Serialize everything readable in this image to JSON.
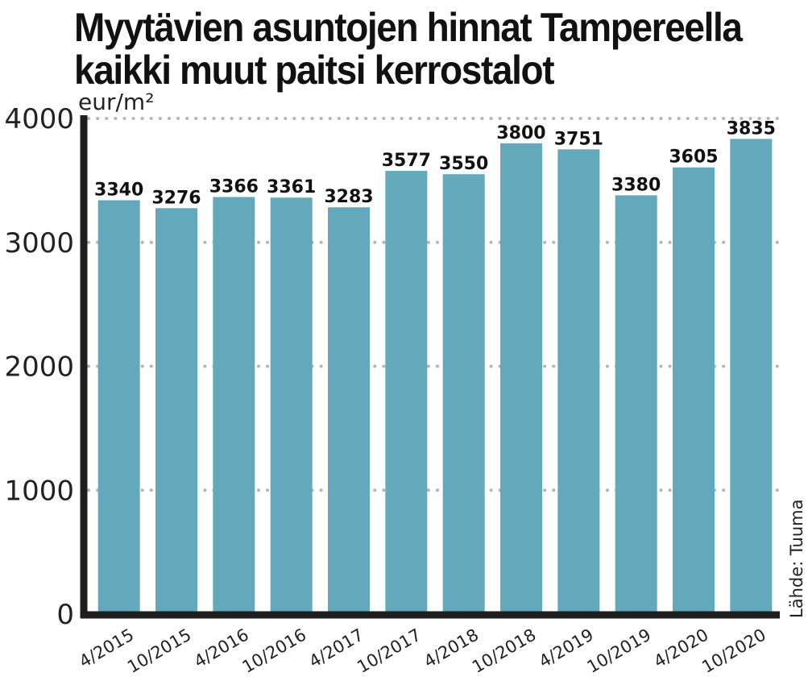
{
  "title_line1": "Myytävien asuntojen hinnat Tampereella",
  "title_line2": "kaikki muut paitsi kerrostalot",
  "source": "Lähde: Tuuma",
  "colors": {
    "bar": "#63a9bb",
    "axis": "#1d1d1d",
    "grid": "#b5b5b5"
  },
  "chart_data": {
    "type": "bar",
    "title": "Myytävien asuntojen hinnat Tampereella kaikki muut paitsi kerrostalot",
    "ylabel": "eur/m²",
    "xlabel": "",
    "categories": [
      "4/2015",
      "10/2015",
      "4/2016",
      "10/2016",
      "4/2017",
      "10/2017",
      "4/2018",
      "10/2018",
      "4/2019",
      "10/2019",
      "4/2020",
      "10/2020"
    ],
    "values": [
      3340,
      3276,
      3366,
      3361,
      3283,
      3577,
      3550,
      3800,
      3751,
      3380,
      3605,
      3835
    ],
    "value_labels": [
      "3340",
      "3276",
      "3366",
      "3361",
      "3283",
      "3577",
      "3550",
      "3800",
      "3751",
      "3380",
      "3605",
      "3835"
    ],
    "ylim": [
      0,
      4000
    ],
    "yticks": [
      0,
      1000,
      2000,
      3000,
      4000
    ],
    "ytick_labels": [
      "0",
      "1000",
      "2000",
      "3000",
      "4000"
    ],
    "grid": true,
    "legend": "none"
  }
}
